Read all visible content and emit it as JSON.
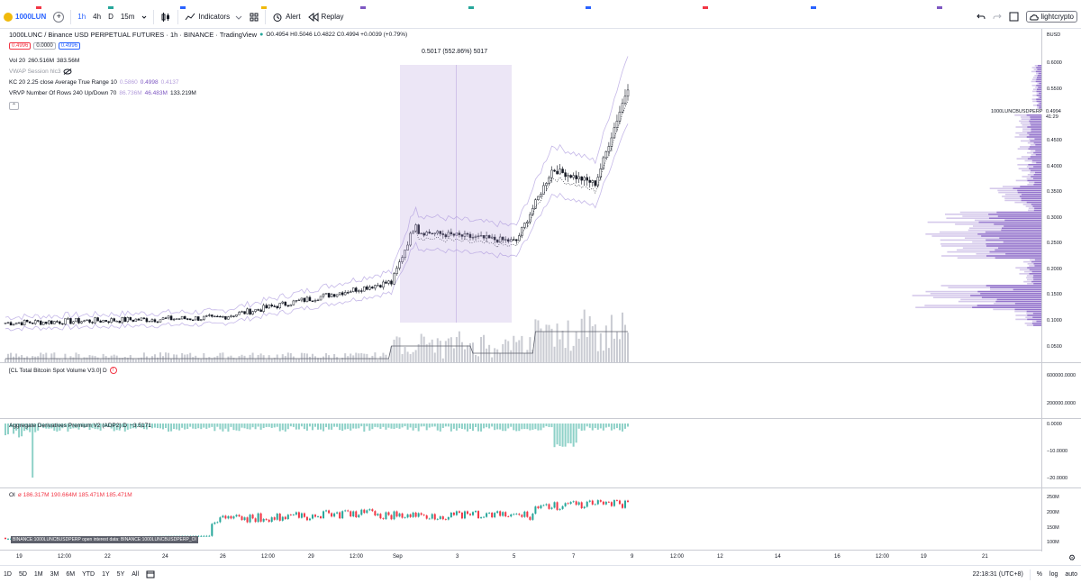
{
  "toolbar": {
    "symbol": "1000LUN",
    "timeframes": [
      "1h",
      "4h",
      "D",
      "15m"
    ],
    "active_timeframe": "1h",
    "indicators_label": "Indicators",
    "alert_label": "Alert",
    "replay_label": "Replay",
    "username": "lightcrypto"
  },
  "header": {
    "title": "1000LUNC / Binance USD PERPETUAL FUTURES · 1h · BINANCE · TradingView",
    "ohlc": "O0.4954 H0.5046 L0.4822 C0.4994 +0.0039 (+0.79%)",
    "sell_price": "0.4996",
    "spread": "0.0000",
    "buy_price": "0.4996"
  },
  "legends": {
    "vol_name": "Vol 20",
    "vol_value": "260.516M",
    "vol_ma": "383.56M",
    "vwap": "VWAP Session hlc3",
    "kc_name": "KC 20 2.25 close Average True Range 10",
    "kc_upper": "0.5860",
    "kc_basis": "0.4998",
    "kc_lower": "0.4137",
    "vrvp_name": "VRVP Number Of Rows 240 Up/Down 70",
    "vrvp_up": "86.736M",
    "vrvp_down": "46.483M",
    "vrvp_total": "133.219M",
    "cl_name": "[CL Total Bitcoin Spot Volume V3.0] D",
    "adp_name": "Aggregate Derivatives Premium V2 (ADP2) D",
    "adp_value": "−3.5171",
    "oi_name": "OI",
    "oi_values": "186.317M 190.664M 185.471M 185.471M",
    "oi_badge": "BINANCE:1000LUNCBUSDPERP open interest data: BINANCE:1000LUNCBUSDPERP_OI"
  },
  "measure": {
    "label": "0.5017 (552.86%) 5017"
  },
  "price_axis": {
    "currency": "BUSD",
    "ticks": [
      "0.6000",
      "0.5500",
      "0.4500",
      "0.4000",
      "0.3500",
      "0.3000",
      "0.2500",
      "0.2000",
      "0.1500",
      "0.1000",
      "0.0500"
    ],
    "last_symbol": "1000LUNCBUSDPERP",
    "last_price": "0.4994",
    "countdown": "41:29"
  },
  "cl_axis": [
    "600000.0000",
    "200000.0000"
  ],
  "adp_axis": [
    "0.0000",
    "−10.0000",
    "−20.0000"
  ],
  "oi_axis": [
    "250M",
    "200M",
    "150M",
    "100M"
  ],
  "time_axis": [
    "19",
    "12:00",
    "22",
    "24",
    "26",
    "12:00",
    "29",
    "12:00",
    "Sep",
    "3",
    "5",
    "7",
    "9",
    "12:00",
    "12",
    "14",
    "16",
    "12:00",
    "19",
    "21"
  ],
  "bottom": {
    "ranges": [
      "1D",
      "5D",
      "1M",
      "3M",
      "6M",
      "YTD",
      "1Y",
      "5Y",
      "All"
    ],
    "clock": "22:18:31 (UTC+8)",
    "percent": "%",
    "log": "log",
    "auto": "auto"
  },
  "colors": {
    "accent": "#2962ff",
    "up": "#26a69a",
    "down": "#f23645",
    "profile": "#7e57c2",
    "measure": "#b39ddb"
  }
}
